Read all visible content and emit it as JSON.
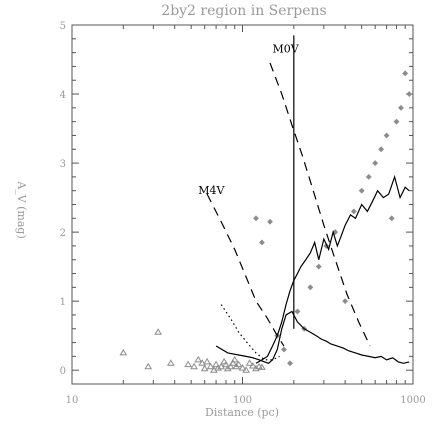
{
  "chart_data": {
    "type": "scatter",
    "title": "2by2 region in Serpens",
    "xlabel": "Distance (pc)",
    "ylabel": "A_V (mag)",
    "xscale": "log",
    "xlim": [
      10,
      1000
    ],
    "ylim": [
      -0.2,
      5.0
    ],
    "x_ticks": [
      {
        "value": 10,
        "label": "10"
      },
      {
        "value": 100,
        "label": "100"
      },
      {
        "value": 1000,
        "label": "1000"
      }
    ],
    "y_ticks": [
      {
        "value": 0,
        "label": "0"
      },
      {
        "value": 1,
        "label": "1"
      },
      {
        "value": 2,
        "label": "2"
      },
      {
        "value": 3,
        "label": "3"
      },
      {
        "value": 4,
        "label": "4"
      },
      {
        "value": 5,
        "label": "5"
      }
    ],
    "annotations": [
      {
        "text": "M0V",
        "x": 150,
        "y": 4.6
      },
      {
        "text": "M4V",
        "x": 55,
        "y": 2.55
      }
    ],
    "grid": false,
    "colors": {
      "points": "#8c8c8c",
      "lines": "#000000",
      "text": "#9a9a9a",
      "frame": "#555555"
    },
    "series": [
      {
        "style": "solid-line",
        "x": [
          70,
          82,
          95,
          105,
          115,
          125,
          135,
          142,
          150,
          160,
          170,
          180,
          195,
          210,
          230,
          250,
          270,
          290,
          310,
          330,
          360,
          390,
          420,
          460,
          500,
          550,
          600,
          650,
          700,
          760,
          820,
          880,
          950
        ],
        "y": [
          0.35,
          0.25,
          0.22,
          0.2,
          0.18,
          0.15,
          0.12,
          0.1,
          0.15,
          0.3,
          0.6,
          0.8,
          0.85,
          0.7,
          0.6,
          0.55,
          0.5,
          0.45,
          0.42,
          0.38,
          0.35,
          0.32,
          0.28,
          0.25,
          0.22,
          0.2,
          0.18,
          0.2,
          0.15,
          0.18,
          0.12,
          0.1,
          0.12
        ]
      },
      {
        "style": "solid-line",
        "x": [
          120,
          130,
          140,
          150,
          160,
          170,
          180,
          190,
          200,
          210,
          220,
          235,
          250,
          265,
          280,
          300,
          320,
          340,
          360,
          380,
          400,
          430,
          460,
          500,
          540,
          580,
          620,
          670,
          720,
          780,
          840,
          900,
          950
        ],
        "y": [
          0.1,
          0.15,
          0.2,
          0.35,
          0.5,
          0.7,
          0.95,
          1.15,
          1.3,
          1.4,
          1.5,
          1.6,
          1.7,
          1.85,
          1.6,
          1.9,
          1.75,
          2.0,
          1.8,
          1.95,
          2.1,
          2.25,
          2.2,
          2.4,
          2.3,
          2.45,
          2.6,
          2.5,
          2.55,
          2.8,
          2.5,
          2.65,
          2.6
        ]
      },
      {
        "style": "solid-line",
        "x": [
          200,
          200
        ],
        "y": [
          0.6,
          4.85
        ]
      },
      {
        "style": "dashed-line",
        "x": [
          145,
          170,
          195,
          225,
          260,
          300,
          350,
          410,
          480,
          560
        ],
        "y": [
          4.45,
          4.0,
          3.55,
          3.1,
          2.6,
          2.1,
          1.6,
          1.1,
          0.7,
          0.35
        ]
      },
      {
        "style": "dashed-line",
        "x": [
          62,
          75,
          90,
          105,
          120,
          140,
          160,
          175
        ],
        "y": [
          2.55,
          2.15,
          1.75,
          1.35,
          1.0,
          0.75,
          0.5,
          0.35
        ]
      },
      {
        "style": "dotted-line",
        "x": [
          75,
          85,
          95,
          108,
          120,
          135,
          150,
          165
        ],
        "y": [
          0.95,
          0.75,
          0.55,
          0.38,
          0.25,
          0.15,
          0.15,
          0.2
        ]
      },
      {
        "marker": "triangle",
        "x": [
          20,
          28,
          32,
          38,
          48,
          52,
          55,
          58,
          60,
          62,
          65,
          68,
          70,
          72,
          75,
          78,
          80,
          82,
          85,
          88,
          90,
          92,
          95,
          100,
          105,
          110,
          115,
          120,
          125,
          130
        ],
        "y": [
          0.25,
          0.05,
          0.55,
          0.1,
          0.08,
          0.05,
          0.15,
          0.1,
          0.02,
          0.12,
          0.05,
          0.0,
          0.08,
          0.03,
          0.05,
          0.12,
          0.08,
          0.02,
          0.05,
          0.1,
          0.15,
          0.05,
          0.08,
          0.03,
          0.0,
          0.1,
          0.06,
          0.02,
          0.05,
          0.04
        ]
      },
      {
        "marker": "diamond",
        "x": [
          120,
          130,
          145,
          160,
          175,
          190,
          210,
          230,
          250,
          280,
          310,
          350,
          400,
          450,
          500,
          550,
          600,
          650,
          700,
          750,
          800,
          850,
          900,
          950
        ],
        "y": [
          2.2,
          1.85,
          2.15,
          0.5,
          0.3,
          0.1,
          0.85,
          0.6,
          1.2,
          1.5,
          1.8,
          2.0,
          1.0,
          2.3,
          2.6,
          2.8,
          3.0,
          3.2,
          3.4,
          2.2,
          3.6,
          3.8,
          4.3,
          4.0
        ]
      }
    ]
  }
}
